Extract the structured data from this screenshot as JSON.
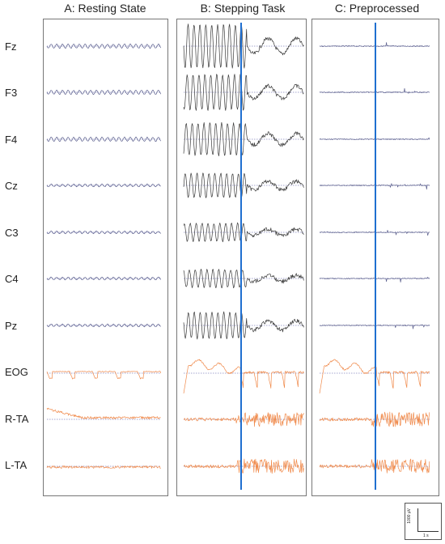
{
  "columns": [
    {
      "title": "A: Resting State"
    },
    {
      "title": "B: Stepping Task"
    },
    {
      "title": "C: Preprocessed"
    }
  ],
  "channels": [
    {
      "label": "Fz",
      "kind": "eeg"
    },
    {
      "label": "F3",
      "kind": "eeg"
    },
    {
      "label": "F4",
      "kind": "eeg"
    },
    {
      "label": "Cz",
      "kind": "eeg"
    },
    {
      "label": "C3",
      "kind": "eeg"
    },
    {
      "label": "C4",
      "kind": "eeg"
    },
    {
      "label": "Pz",
      "kind": "eeg"
    },
    {
      "label": "EOG",
      "kind": "eog"
    },
    {
      "label": "R-TA",
      "kind": "emg"
    },
    {
      "label": "L-TA",
      "kind": "emg"
    }
  ],
  "colors": {
    "eeg_trace": "#5a5e8c",
    "stepping_eeg_trace": "#3a3a3a",
    "other_trace": "#f08a4b",
    "baseline": "#4a4fa0",
    "event_marker": "#1f6fd0",
    "panel_border": "#777777"
  },
  "scale_bar": {
    "amplitude_label": "1000 µV",
    "time_label": "1 s"
  }
}
